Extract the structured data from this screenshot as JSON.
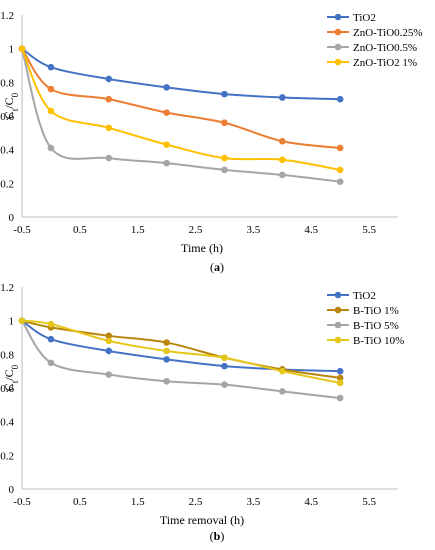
{
  "chart_data": [
    {
      "type": "line",
      "panel_label": "(a)",
      "xlabel": "Time (h)",
      "ylabel": "Ct/C0",
      "xlim": [
        -0.5,
        6
      ],
      "ylim": [
        0,
        1.2
      ],
      "xticks": [
        "-0.5",
        "0.5",
        "1.5",
        "2.5",
        "3.5",
        "4.5",
        "5.5"
      ],
      "yticks": [
        "0",
        "0.2",
        "0.4",
        "0.6",
        "0.8",
        "1",
        "1.2"
      ],
      "grid": false,
      "legend_position": "top-right",
      "x": [
        -0.5,
        0,
        1,
        2,
        3,
        4,
        5
      ],
      "series": [
        {
          "name": "TiO2",
          "color": "#4472C4",
          "values": [
            1.0,
            0.89,
            0.82,
            0.77,
            0.73,
            0.71,
            0.7
          ]
        },
        {
          "name": "ZnO-TiO0.25%",
          "color": "#ED7D31",
          "values": [
            1.0,
            0.76,
            0.7,
            0.62,
            0.56,
            0.45,
            0.41
          ]
        },
        {
          "name": "ZnO-TiO0.5%",
          "color": "#A5A5A5",
          "values": [
            1.0,
            0.41,
            0.35,
            0.32,
            0.28,
            0.25,
            0.21
          ]
        },
        {
          "name": "ZnO-TiO2 1%",
          "color": "#FFC000",
          "values": [
            1.0,
            0.63,
            0.53,
            0.43,
            0.35,
            0.34,
            0.28
          ]
        }
      ]
    },
    {
      "type": "line",
      "panel_label": "(b)",
      "xlabel": "Time removal (h)",
      "ylabel": "Ct/C0",
      "xlim": [
        -0.5,
        6
      ],
      "ylim": [
        0,
        1.2
      ],
      "xticks": [
        "-0.5",
        "0.5",
        "1.5",
        "2.5",
        "3.5",
        "4.5",
        "5.5"
      ],
      "yticks": [
        "0",
        "0.2",
        "0.4",
        "0.6",
        "0.8",
        "1",
        "1.2"
      ],
      "grid": false,
      "legend_position": "top-right",
      "x": [
        -0.5,
        0,
        1,
        2,
        3,
        4,
        5
      ],
      "series": [
        {
          "name": "TiO2",
          "color": "#4472C4",
          "values": [
            1.0,
            0.89,
            0.82,
            0.77,
            0.73,
            0.71,
            0.7
          ]
        },
        {
          "name": "B-TiO 1%",
          "color": "#B8860B",
          "values": [
            1.0,
            0.96,
            0.91,
            0.87,
            0.78,
            0.71,
            0.66
          ]
        },
        {
          "name": "B-TiO 5%",
          "color": "#A5A5A5",
          "values": [
            1.0,
            0.75,
            0.68,
            0.64,
            0.62,
            0.58,
            0.54
          ]
        },
        {
          "name": "B-TiO 10%",
          "color": "#E6C619",
          "values": [
            1.0,
            0.98,
            0.88,
            0.82,
            0.78,
            0.7,
            0.63
          ]
        }
      ]
    }
  ]
}
